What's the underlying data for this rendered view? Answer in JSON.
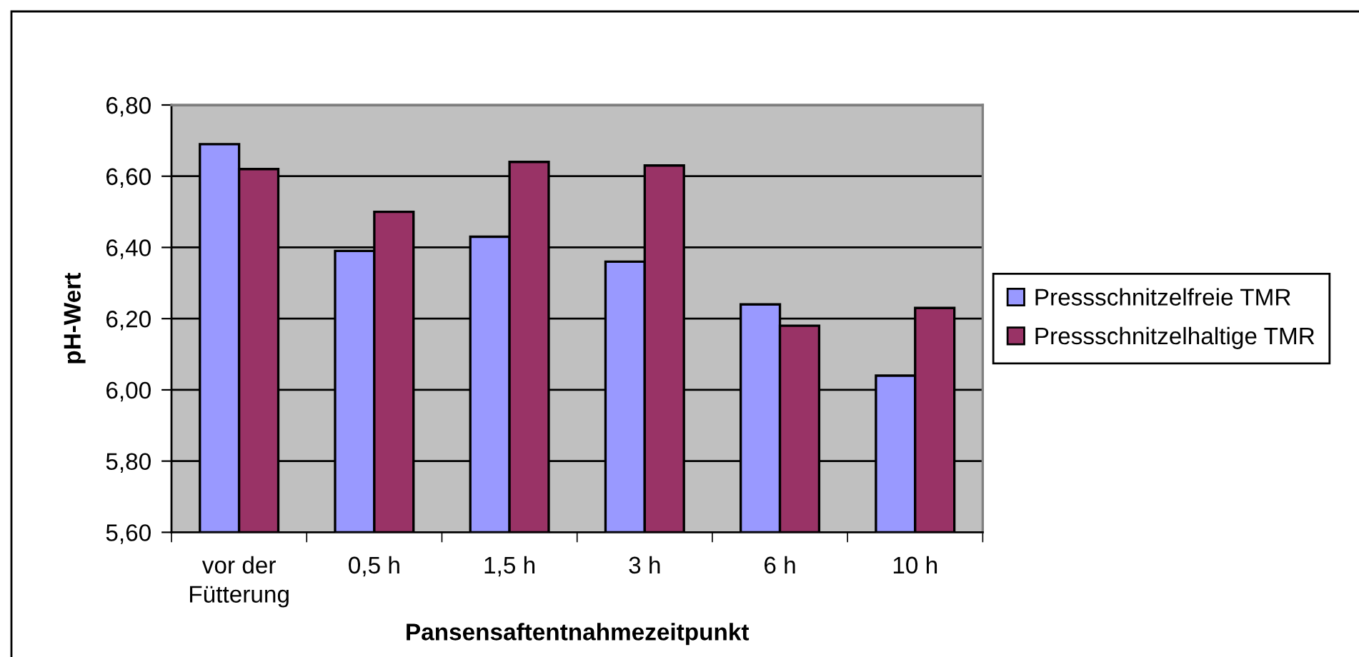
{
  "chart_data": {
    "type": "bar",
    "xlabel": "Pansensaftentnahmezeitpunkt",
    "ylabel": "pH-Wert",
    "categories": [
      "vor der\nFütterung",
      "0,5 h",
      "1,5 h",
      "3 h",
      "6 h",
      "10 h"
    ],
    "series": [
      {
        "name": "Pressschnitzelfreie TMR",
        "color": "#9999ff",
        "values": [
          6.69,
          6.39,
          6.43,
          6.36,
          6.24,
          6.04
        ]
      },
      {
        "name": "Pressschnitzelhaltige TMR",
        "color": "#993366",
        "values": [
          6.62,
          6.5,
          6.64,
          6.63,
          6.18,
          6.23
        ]
      }
    ],
    "ylim": [
      5.6,
      6.8
    ],
    "yticks": [
      {
        "value": 5.6,
        "label": "5,60"
      },
      {
        "value": 5.8,
        "label": "5,80"
      },
      {
        "value": 6.0,
        "label": "6,00"
      },
      {
        "value": 6.2,
        "label": "6,20"
      },
      {
        "value": 6.4,
        "label": "6,40"
      },
      {
        "value": 6.6,
        "label": "6,60"
      },
      {
        "value": 6.8,
        "label": "6,80"
      }
    ],
    "grid": "y",
    "legend": "right"
  }
}
